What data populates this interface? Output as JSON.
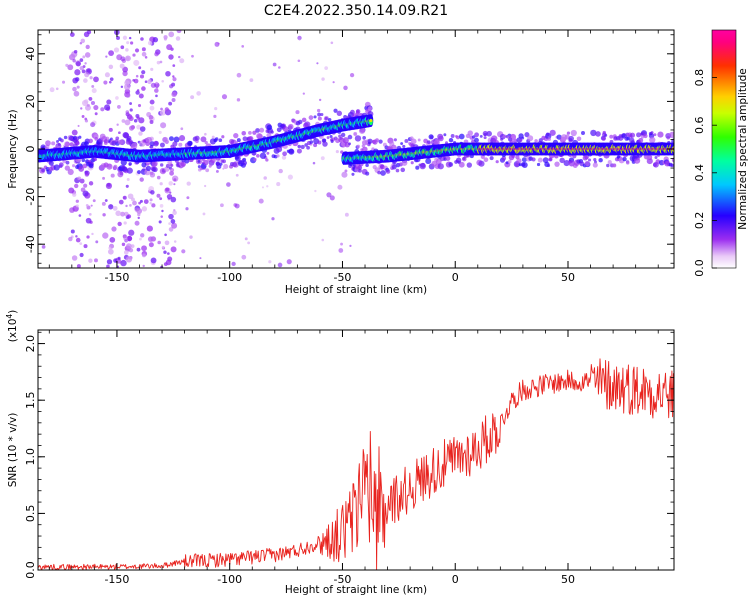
{
  "title": "C2E4.2022.350.14.09.R21",
  "colorbar": {
    "label": "Normalized spectral amplitude",
    "ticks": [
      "0.0",
      "0.2",
      "0.4",
      "0.6",
      "0.8"
    ],
    "range": [
      0,
      1
    ],
    "colormap": "rainbow-magenta-to-red-to-pink"
  },
  "chart_data": [
    {
      "type": "heatmap",
      "xlabel": "Height of straight line (km)",
      "ylabel": "Frequency (Hz)",
      "xlim": [
        -185,
        97
      ],
      "ylim": [
        -50,
        50
      ],
      "xticks": [
        -150,
        -100,
        -50,
        0,
        50
      ],
      "yticks": [
        -40,
        -20,
        0,
        20,
        40
      ],
      "features": {
        "main_trace": {
          "description_values": [
            {
              "x": -185,
              "y": -3
            },
            {
              "x": -160,
              "y": -1
            },
            {
              "x": -140,
              "y": -3
            },
            {
              "x": -120,
              "y": -2
            },
            {
              "x": -100,
              "y": -1
            },
            {
              "x": -80,
              "y": 3
            },
            {
              "x": -60,
              "y": 8
            },
            {
              "x": -50,
              "y": 10
            },
            {
              "x": -37,
              "y": 12
            },
            {
              "x": -50,
              "y": -4
            },
            {
              "x": -30,
              "y": -3
            },
            {
              "x": -10,
              "y": -1
            },
            {
              "x": 0,
              "y": 0
            },
            {
              "x": 20,
              "y": 0
            },
            {
              "x": 50,
              "y": 0
            },
            {
              "x": 97,
              "y": 0
            }
          ]
        },
        "vertical_streaks_x": [
          -165,
          -150,
          -140,
          -130
        ]
      }
    },
    {
      "type": "line",
      "xlabel": "Height of straight line (km)",
      "ylabel": "SNR (10 * v/v)",
      "yscale_label": "(x10",
      "yscale_exp": "4",
      "yscale_close": ")",
      "xlim": [
        -185,
        97
      ],
      "ylim": [
        0,
        2.12
      ],
      "xticks": [
        -150,
        -100,
        -50,
        0,
        50
      ],
      "yticks": [
        0.0,
        0.5,
        1.0,
        1.5,
        2.0
      ],
      "ytick_labels": [
        "0.0",
        "0.5",
        "1.0",
        "1.5",
        "2.0"
      ],
      "series": [
        {
          "color": "#e8231e",
          "envelope_points": [
            {
              "x": -185,
              "y": 0.03
            },
            {
              "x": -150,
              "y": 0.03
            },
            {
              "x": -130,
              "y": 0.04
            },
            {
              "x": -120,
              "y": 0.08
            },
            {
              "x": -100,
              "y": 0.1
            },
            {
              "x": -90,
              "y": 0.12
            },
            {
              "x": -80,
              "y": 0.14
            },
            {
              "x": -70,
              "y": 0.18
            },
            {
              "x": -60,
              "y": 0.25
            },
            {
              "x": -50,
              "y": 0.35
            },
            {
              "x": -45,
              "y": 0.5
            },
            {
              "x": -38,
              "y": 0.7
            },
            {
              "x": -35,
              "y": 0.45
            },
            {
              "x": -30,
              "y": 0.6
            },
            {
              "x": -20,
              "y": 0.75
            },
            {
              "x": -10,
              "y": 0.9
            },
            {
              "x": 0,
              "y": 1.0
            },
            {
              "x": 10,
              "y": 1.1
            },
            {
              "x": 20,
              "y": 1.3
            },
            {
              "x": 25,
              "y": 1.5
            },
            {
              "x": 30,
              "y": 1.6
            },
            {
              "x": 40,
              "y": 1.65
            },
            {
              "x": 50,
              "y": 1.68
            },
            {
              "x": 60,
              "y": 1.68
            },
            {
              "x": 70,
              "y": 1.66
            },
            {
              "x": 80,
              "y": 1.62
            },
            {
              "x": 90,
              "y": 1.6
            },
            {
              "x": 97,
              "y": 1.55
            }
          ]
        }
      ]
    }
  ]
}
